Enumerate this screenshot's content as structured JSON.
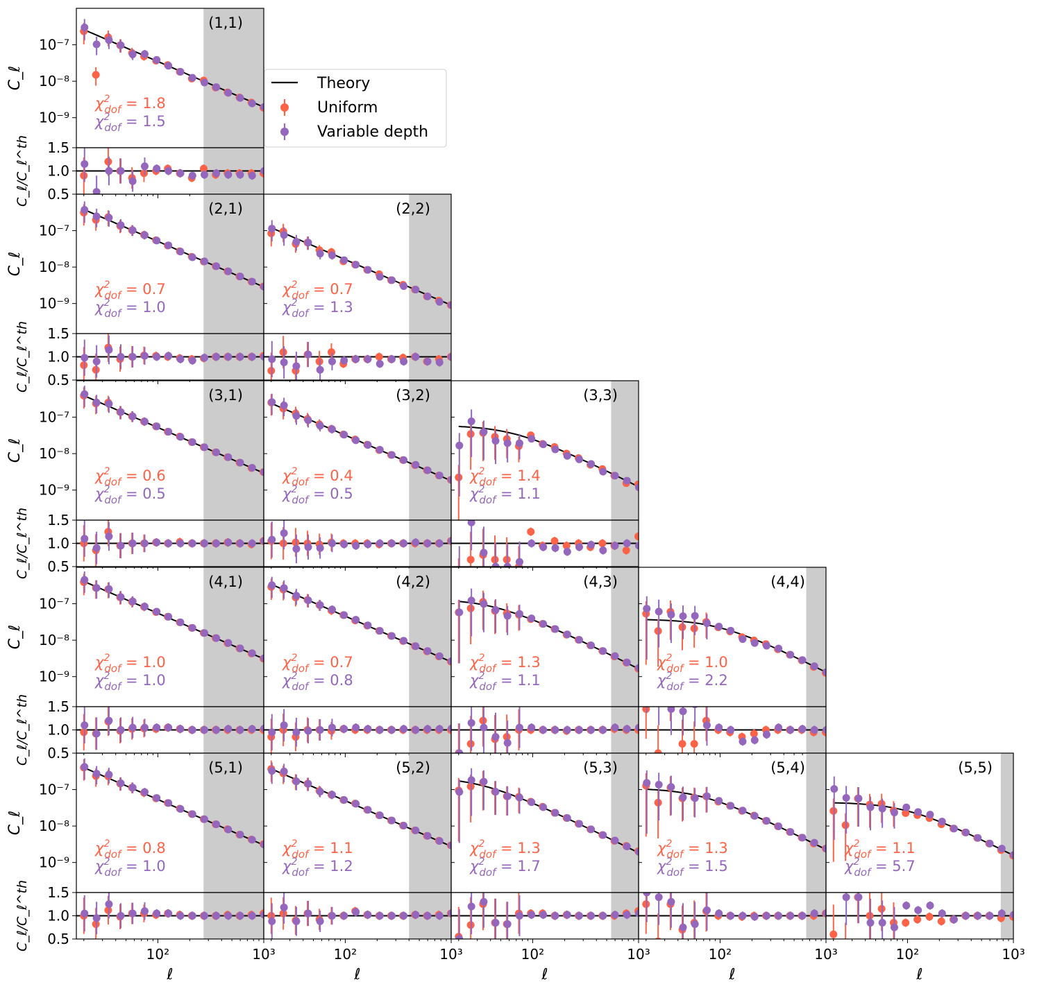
{
  "chart_data": {
    "type": "scatter",
    "xlabel": "ℓ",
    "ylabel_main": "C_ℓ",
    "ylabel_ratio": "C_ℓ/C_ℓ^th",
    "xscale": "log",
    "yscale_main": "log",
    "xlim": [
      17,
      1000
    ],
    "ylim_main": [
      1.5e-10,
      1e-06
    ],
    "ylim_ratio": [
      0.5,
      1.5
    ],
    "x_tick_labels": [
      "10²",
      "10³"
    ],
    "y_tick_labels_main": [
      "10⁻⁷",
      "10⁻⁸",
      "10⁻⁹"
    ],
    "y_tick_labels_ratio": [
      "1.5",
      "1.0",
      "0.5"
    ],
    "legend": {
      "placement": "right of panel (1,1)",
      "entries": [
        {
          "label": "Theory",
          "color": "#000000",
          "marker": "line"
        },
        {
          "label": "Uniform",
          "color": "#ff6347",
          "marker": "errorbar"
        },
        {
          "label": "Variable depth",
          "color": "#9467bd",
          "marker": "errorbar"
        }
      ]
    },
    "colors": {
      "theory": "#000000",
      "uniform": "#ff6347",
      "variable": "#9467bd",
      "shade": "#cccccc"
    },
    "ell": [
      20,
      26,
      34,
      44,
      57,
      74,
      96,
      124,
      161,
      209,
      271,
      351,
      455,
      590,
      765,
      992
    ],
    "panels": [
      {
        "label": "(1,1)",
        "row": 1,
        "col": 1,
        "amp": 2.6e-07,
        "knee": 0,
        "ell_min": 20,
        "shade_from": 270,
        "chi_uniform": "1.8",
        "chi_variable": "1.5",
        "uniform_ratio": [
          0.9,
          0.08,
          1.2,
          1.0,
          0.85,
          0.95,
          1.0,
          1.05,
          0.95,
          0.85,
          1.05,
          0.92,
          0.95,
          0.95,
          0.95,
          0.95
        ],
        "variable_ratio": [
          1.15,
          0.55,
          1.0,
          1.0,
          0.78,
          1.1,
          1.05,
          1.0,
          0.95,
          0.9,
          0.92,
          0.95,
          0.92,
          0.92,
          0.9,
          1.0
        ]
      },
      {
        "label": "(2,1)",
        "row": 2,
        "col": 1,
        "amp": 3.8e-07,
        "knee": 0,
        "ell_min": 20,
        "shade_from": 270,
        "chi_uniform": "0.7",
        "chi_variable": "1.0",
        "uniform_ratio": [
          0.82,
          0.72,
          1.2,
          0.95,
          1.0,
          1.03,
          1.02,
          1.0,
          0.97,
          0.95,
          0.97,
          1.0,
          1.0,
          1.0,
          1.0,
          1.02
        ],
        "variable_ratio": [
          0.98,
          0.9,
          1.15,
          1.0,
          1.0,
          1.02,
          1.0,
          1.02,
          0.95,
          0.92,
          0.98,
          1.0,
          1.0,
          1.0,
          1.0,
          1.0
        ]
      },
      {
        "label": "(2,2)",
        "row": 2,
        "col": 2,
        "amp": 1.2e-07,
        "knee": 0,
        "ell_min": 20,
        "shade_from": 400,
        "chi_uniform": "0.7",
        "chi_variable": "1.3",
        "uniform_ratio": [
          0.7,
          1.1,
          0.7,
          1.05,
          0.9,
          1.1,
          0.85,
          0.95,
          0.95,
          1.0,
          0.95,
          0.98,
          1.0,
          0.9,
          0.95,
          1.0
        ],
        "variable_ratio": [
          0.95,
          0.88,
          0.8,
          1.05,
          0.72,
          0.9,
          0.92,
          0.95,
          0.95,
          0.85,
          0.95,
          0.9,
          1.0,
          0.9,
          0.88,
          1.0
        ]
      },
      {
        "label": "(3,1)",
        "row": 3,
        "col": 1,
        "amp": 3.9e-07,
        "knee": 0,
        "ell_min": 20,
        "shade_from": 270,
        "chi_uniform": "0.6",
        "chi_variable": "0.5",
        "uniform_ratio": [
          1.0,
          0.85,
          1.25,
          0.95,
          1.0,
          1.0,
          1.02,
          1.0,
          1.03,
          1.0,
          1.0,
          1.0,
          1.02,
          1.0,
          0.98,
          1.05
        ],
        "variable_ratio": [
          1.1,
          0.9,
          1.15,
          0.95,
          1.0,
          1.0,
          1.02,
          1.0,
          1.0,
          1.0,
          1.0,
          1.0,
          1.02,
          1.0,
          1.0,
          1.05
        ]
      },
      {
        "label": "(3,2)",
        "row": 3,
        "col": 2,
        "amp": 2.4e-07,
        "knee": 0,
        "ell_min": 20,
        "shade_from": 400,
        "chi_uniform": "0.4",
        "chi_variable": "0.5",
        "uniform_ratio": [
          1.05,
          1.0,
          1.02,
          1.0,
          0.98,
          1.02,
          1.0,
          1.0,
          1.0,
          0.98,
          1.0,
          1.0,
          1.0,
          1.0,
          1.0,
          1.05
        ],
        "variable_ratio": [
          1.08,
          1.22,
          0.88,
          0.92,
          0.9,
          1.0,
          0.98,
          0.95,
          0.98,
          1.0,
          1.0,
          1.0,
          1.02,
          1.0,
          1.0,
          1.05
        ]
      },
      {
        "label": "(3,3)",
        "row": 3,
        "col": 3,
        "amp": 6e-08,
        "knee": 60,
        "ell_min": 20,
        "shade_from": 550,
        "chi_uniform": "1.4",
        "chi_variable": "1.1",
        "uniform_ratio": [
          0.04,
          0.65,
          0.75,
          0.65,
          0.65,
          0.5,
          1.25,
          0.95,
          1.05,
          0.95,
          1.0,
          0.92,
          1.0,
          0.95,
          0.85,
          1.15
        ],
        "variable_ratio": [
          0.3,
          1.45,
          0.8,
          0.5,
          0.5,
          0.6,
          1.0,
          0.92,
          0.9,
          0.82,
          0.92,
          0.97,
          0.85,
          0.95,
          1.0,
          0.95
        ]
      },
      {
        "label": "(4,1)",
        "row": 4,
        "col": 1,
        "amp": 4.1e-07,
        "knee": 0,
        "ell_min": 20,
        "shade_from": 270,
        "chi_uniform": "1.0",
        "chi_variable": "1.0",
        "uniform_ratio": [
          0.95,
          0.92,
          1.18,
          0.98,
          1.02,
          1.03,
          1.02,
          1.05,
          1.02,
          1.0,
          1.0,
          1.0,
          1.0,
          1.0,
          1.0,
          1.0
        ],
        "variable_ratio": [
          1.1,
          0.92,
          1.2,
          1.0,
          1.05,
          1.05,
          1.05,
          1.05,
          1.02,
          1.0,
          1.0,
          1.0,
          1.02,
          1.0,
          1.02,
          1.03
        ]
      },
      {
        "label": "(4,2)",
        "row": 4,
        "col": 2,
        "amp": 3.4e-07,
        "knee": 0,
        "ell_min": 20,
        "shade_from": 400,
        "chi_uniform": "0.7",
        "chi_variable": "0.8",
        "uniform_ratio": [
          0.85,
          1.0,
          0.85,
          1.0,
          1.0,
          0.98,
          1.02,
          1.0,
          1.0,
          1.0,
          1.0,
          1.0,
          1.0,
          1.0,
          1.0,
          1.0
        ],
        "variable_ratio": [
          0.95,
          1.1,
          0.95,
          0.98,
          1.0,
          1.05,
          1.02,
          1.05,
          1.02,
          1.0,
          1.0,
          1.02,
          1.0,
          1.02,
          1.02,
          1.03
        ]
      },
      {
        "label": "(4,3)",
        "row": 4,
        "col": 3,
        "amp": 1.35e-07,
        "knee": 40,
        "ell_min": 20,
        "shade_from": 550,
        "chi_uniform": "1.3",
        "chi_variable": "1.1",
        "uniform_ratio": [
          0.5,
          0.7,
          1.2,
          0.8,
          0.85,
          1.0,
          1.0,
          1.0,
          1.0,
          0.98,
          1.0,
          1.0,
          1.0,
          1.02,
          1.0,
          1.0
        ],
        "variable_ratio": [
          0.5,
          1.15,
          1.05,
          0.85,
          0.72,
          1.05,
          1.05,
          1.0,
          1.0,
          1.0,
          1.0,
          1.0,
          1.0,
          1.05,
          1.02,
          1.05
        ]
      },
      {
        "label": "(4,4)",
        "row": 4,
        "col": 4,
        "amp": 3.8e-08,
        "knee": 90,
        "ell_min": 20,
        "shade_from": 650,
        "chi_uniform": "1.0",
        "chi_variable": "2.2",
        "uniform_ratio": [
          1.45,
          0.5,
          1.75,
          0.7,
          0.7,
          1.2,
          1.0,
          0.95,
          0.85,
          0.92,
          1.0,
          1.0,
          1.0,
          1.0,
          0.95,
          0.95
        ],
        "variable_ratio": [
          2.0,
          1.7,
          1.45,
          1.4,
          1.55,
          1.1,
          1.05,
          1.0,
          0.75,
          0.78,
          0.9,
          1.05,
          1.0,
          1.02,
          1.0,
          1.0
        ]
      },
      {
        "label": "(5,1)",
        "row": 5,
        "col": 1,
        "amp": 4e-07,
        "knee": 0,
        "ell_min": 20,
        "shade_from": 270,
        "chi_uniform": "0.8",
        "chi_variable": "1.0",
        "uniform_ratio": [
          1.0,
          0.82,
          1.12,
          0.98,
          1.05,
          1.05,
          1.02,
          1.05,
          1.02,
          1.0,
          1.0,
          1.0,
          1.02,
          1.0,
          1.02,
          1.05
        ],
        "variable_ratio": [
          1.05,
          0.95,
          1.25,
          1.0,
          1.05,
          1.1,
          1.05,
          1.05,
          1.0,
          1.0,
          1.0,
          1.0,
          1.0,
          1.0,
          1.0,
          1.02
        ]
      },
      {
        "label": "(5,2)",
        "row": 5,
        "col": 2,
        "amp": 3.7e-07,
        "knee": 0,
        "ell_min": 20,
        "shade_from": 400,
        "chi_uniform": "1.1",
        "chi_variable": "1.2",
        "uniform_ratio": [
          1.0,
          1.05,
          0.9,
          1.05,
          0.92,
          1.0,
          1.0,
          1.1,
          1.02,
          1.0,
          1.0,
          1.0,
          1.02,
          1.0,
          1.02,
          1.05
        ],
        "variable_ratio": [
          0.88,
          1.18,
          0.88,
          1.05,
          0.88,
          1.0,
          1.0,
          1.08,
          1.02,
          1.0,
          1.0,
          1.0,
          1.02,
          1.0,
          1.0,
          1.05
        ]
      },
      {
        "label": "(5,3)",
        "row": 5,
        "col": 3,
        "amp": 2.2e-07,
        "knee": 30,
        "ell_min": 20,
        "shade_from": 550,
        "chi_uniform": "1.3",
        "chi_variable": "1.7",
        "uniform_ratio": [
          0.55,
          0.8,
          1.25,
          0.85,
          0.82,
          1.05,
          1.05,
          1.05,
          1.0,
          1.02,
          1.0,
          1.0,
          1.0,
          1.0,
          1.05,
          1.1
        ],
        "variable_ratio": [
          0.5,
          1.2,
          1.3,
          0.85,
          0.82,
          1.0,
          1.02,
          1.02,
          1.0,
          1.02,
          1.0,
          1.0,
          1.0,
          1.02,
          1.02,
          1.05
        ]
      },
      {
        "label": "(5,4)",
        "row": 5,
        "col": 4,
        "amp": 1.1e-07,
        "knee": 60,
        "ell_min": 20,
        "shade_from": 650,
        "chi_uniform": "1.3",
        "chi_variable": "1.5",
        "uniform_ratio": [
          1.25,
          0.45,
          1.25,
          0.7,
          0.85,
          1.1,
          1.0,
          1.0,
          0.98,
          1.0,
          1.0,
          1.0,
          1.0,
          1.0,
          1.0,
          1.05
        ],
        "variable_ratio": [
          1.5,
          1.4,
          1.3,
          0.75,
          0.82,
          1.12,
          1.05,
          1.0,
          1.0,
          0.98,
          1.0,
          1.0,
          1.0,
          1.0,
          1.05,
          1.05
        ]
      },
      {
        "label": "(5,5)",
        "row": 5,
        "col": 5,
        "amp": 4.5e-08,
        "knee": 90,
        "ell_min": 20,
        "shade_from": 760,
        "chi_uniform": "1.1",
        "chi_variable": "5.7",
        "uniform_ratio": [
          0.6,
          0.25,
          1.4,
          1.0,
          1.15,
          0.85,
          0.85,
          0.92,
          0.98,
          0.88,
          0.92,
          1.0,
          1.0,
          1.0,
          0.95,
          0.98
        ],
        "variable_ratio": [
          2.4,
          1.4,
          1.4,
          0.85,
          0.85,
          0.75,
          1.22,
          1.12,
          1.22,
          1.05,
          0.92,
          1.0,
          1.0,
          1.0,
          1.05,
          1.02
        ]
      }
    ]
  }
}
